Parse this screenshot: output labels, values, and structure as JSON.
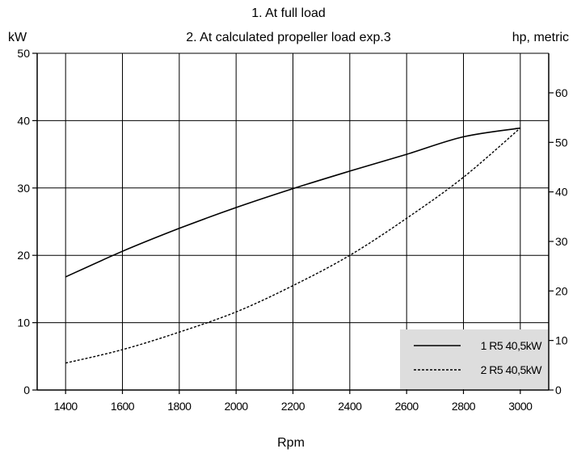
{
  "chart_data": {
    "type": "line",
    "title_lines": [
      "1. At full load",
      "2. At calculated propeller load exp.3"
    ],
    "xlabel": "Rpm",
    "ylabel_left": "kW",
    "ylabel_right": "hp, metric",
    "xlim": [
      1300,
      3100
    ],
    "ylim": [
      0,
      50
    ],
    "x_ticks": [
      1400,
      1600,
      1800,
      2000,
      2200,
      2400,
      2600,
      2800,
      3000
    ],
    "x_tick_labels": [
      "1400",
      "1600",
      "1800",
      "2000",
      "2200",
      "2400",
      "2600",
      "2800",
      "3000"
    ],
    "y_ticks": [
      0,
      10,
      20,
      30,
      40,
      50
    ],
    "y_tick_labels": [
      "0",
      "10",
      "20",
      "30",
      "40",
      "50"
    ],
    "y2_ticks": [
      0,
      10,
      20,
      30,
      40,
      50,
      60
    ],
    "y2_tick_labels": [
      "0",
      "10",
      "20",
      "30",
      "40",
      "50",
      "60"
    ],
    "y2_per_kw": 1.3596,
    "grid": true,
    "legend_position": "bottom-right",
    "series": [
      {
        "name": "1 R5 40,5kW",
        "style": "solid",
        "color": "#000000",
        "x": [
          1400,
          1600,
          1800,
          2000,
          2200,
          2400,
          2600,
          2800,
          3000
        ],
        "y": [
          16.8,
          20.6,
          24.0,
          27.1,
          29.9,
          32.5,
          35.0,
          37.6,
          38.9
        ]
      },
      {
        "name": "2 R5 40,5kW",
        "style": "dashed",
        "color": "#000000",
        "x": [
          1400,
          1600,
          1800,
          2000,
          2200,
          2400,
          2600,
          2800,
          3000
        ],
        "y": [
          4.0,
          6.0,
          8.6,
          11.6,
          15.5,
          20.0,
          25.5,
          31.6,
          38.9
        ]
      }
    ]
  }
}
